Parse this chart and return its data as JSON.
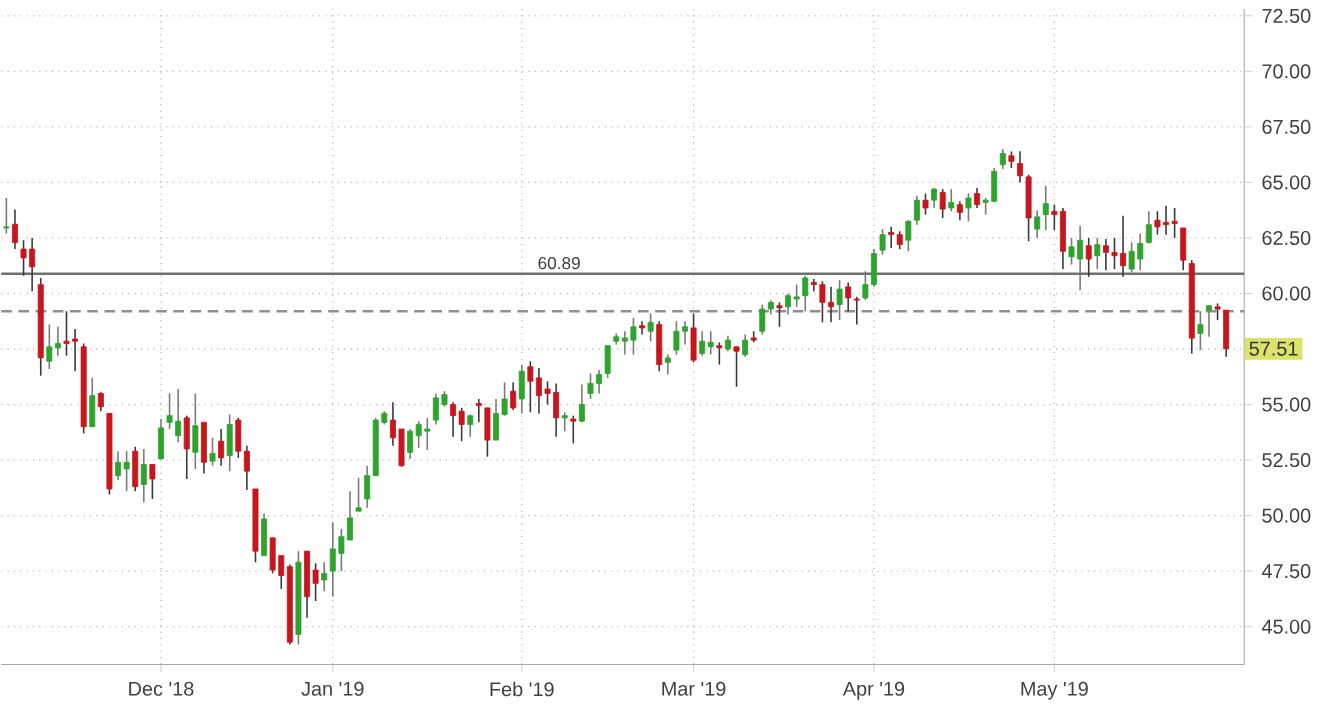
{
  "chart_data": {
    "type": "candlestick",
    "categories": [
      null,
      null,
      null,
      null,
      null,
      null,
      null,
      null,
      null,
      null,
      null,
      null,
      null,
      null,
      null,
      null,
      null,
      null,
      "Dec '18",
      null,
      null,
      null,
      null,
      null,
      null,
      null,
      null,
      null,
      null,
      null,
      null,
      null,
      null,
      null,
      null,
      null,
      null,
      null,
      "Jan '19",
      null,
      null,
      null,
      null,
      null,
      null,
      null,
      null,
      null,
      null,
      null,
      null,
      null,
      null,
      null,
      null,
      null,
      null,
      null,
      null,
      null,
      "Feb '19",
      null,
      null,
      null,
      null,
      null,
      null,
      null,
      null,
      null,
      null,
      null,
      null,
      null,
      null,
      null,
      null,
      null,
      null,
      null,
      "Mar '19",
      null,
      null,
      null,
      null,
      null,
      null,
      null,
      null,
      null,
      null,
      null,
      null,
      null,
      null,
      null,
      null,
      null,
      null,
      null,
      null,
      "Apr '19",
      null,
      null,
      null,
      null,
      null,
      null,
      null,
      null,
      null,
      null,
      null,
      null,
      null,
      null,
      null,
      null,
      null,
      null,
      null,
      null,
      "May '19",
      null,
      null,
      null,
      null,
      null,
      null,
      null,
      null,
      null,
      null,
      null,
      null,
      null,
      null,
      null,
      null,
      null,
      null,
      null,
      null
    ],
    "ohlc": [
      [
        62.95,
        64.3,
        62.7,
        63.0
      ],
      [
        63.12,
        63.78,
        62.0,
        62.29
      ],
      [
        62.0,
        62.4,
        60.8,
        61.6
      ],
      [
        62.0,
        62.5,
        60.1,
        61.2
      ],
      [
        60.4,
        60.7,
        56.3,
        57.1
      ],
      [
        56.95,
        58.6,
        56.6,
        57.6
      ],
      [
        57.55,
        58.5,
        57.2,
        57.75
      ],
      [
        57.85,
        59.2,
        57.2,
        57.75
      ],
      [
        57.95,
        58.4,
        56.5,
        57.85
      ],
      [
        57.6,
        57.75,
        53.7,
        54.0
      ],
      [
        54.0,
        56.2,
        54.0,
        55.4
      ],
      [
        55.5,
        55.55,
        54.7,
        54.9
      ],
      [
        54.6,
        54.6,
        50.95,
        51.2
      ],
      [
        51.8,
        52.9,
        51.6,
        52.4
      ],
      [
        52.1,
        52.9,
        51.1,
        52.4
      ],
      [
        52.9,
        53.1,
        51.1,
        51.3
      ],
      [
        51.4,
        53.0,
        50.6,
        52.3
      ],
      [
        52.3,
        52.3,
        50.75,
        51.65
      ],
      [
        52.55,
        54.35,
        52.55,
        53.95
      ],
      [
        54.2,
        55.5,
        53.9,
        54.5
      ],
      [
        53.6,
        55.7,
        53.3,
        54.25
      ],
      [
        54.4,
        54.5,
        51.65,
        53.0
      ],
      [
        52.85,
        55.5,
        52.1,
        54.05
      ],
      [
        54.2,
        54.2,
        51.9,
        52.4
      ],
      [
        52.45,
        53.5,
        52.25,
        52.8
      ],
      [
        53.35,
        53.9,
        52.25,
        52.6
      ],
      [
        52.7,
        54.55,
        52.0,
        54.1
      ],
      [
        54.3,
        54.4,
        52.6,
        52.9
      ],
      [
        52.9,
        53.15,
        51.15,
        52.0
      ],
      [
        51.2,
        51.2,
        47.9,
        48.4
      ],
      [
        48.2,
        50.1,
        48.2,
        49.85
      ],
      [
        49.0,
        49.0,
        47.4,
        47.55
      ],
      [
        48.2,
        48.2,
        46.7,
        47.3
      ],
      [
        47.7,
        47.8,
        44.2,
        44.3
      ],
      [
        44.65,
        48.4,
        44.2,
        47.9
      ],
      [
        48.4,
        48.4,
        45.4,
        46.35
      ],
      [
        47.55,
        47.85,
        46.15,
        46.95
      ],
      [
        47.1,
        47.9,
        46.6,
        47.4
      ],
      [
        47.5,
        49.7,
        46.35,
        48.5
      ],
      [
        48.3,
        49.4,
        47.5,
        49.05
      ],
      [
        48.9,
        51.1,
        48.9,
        49.9
      ],
      [
        50.2,
        51.7,
        50.2,
        50.35
      ],
      [
        50.75,
        52.25,
        50.35,
        51.8
      ],
      [
        51.8,
        54.4,
        51.8,
        54.3
      ],
      [
        54.2,
        54.7,
        54.1,
        54.6
      ],
      [
        54.3,
        55.1,
        53.15,
        53.5
      ],
      [
        53.9,
        53.9,
        52.2,
        52.25
      ],
      [
        52.85,
        53.9,
        52.55,
        53.8
      ],
      [
        53.6,
        54.25,
        53.05,
        54.1
      ],
      [
        53.8,
        54.4,
        52.95,
        53.9
      ],
      [
        54.3,
        55.5,
        54.1,
        55.3
      ],
      [
        55.0,
        55.6,
        54.9,
        55.45
      ],
      [
        55.0,
        55.1,
        53.55,
        54.5
      ],
      [
        54.7,
        54.85,
        53.35,
        54.1
      ],
      [
        54.1,
        54.55,
        53.55,
        54.5
      ],
      [
        55.05,
        55.25,
        54.2,
        54.95
      ],
      [
        54.85,
        54.85,
        52.65,
        53.4
      ],
      [
        53.4,
        55.25,
        53.4,
        54.6
      ],
      [
        54.55,
        56.0,
        54.5,
        55.25
      ],
      [
        55.6,
        56.0,
        54.75,
        54.85
      ],
      [
        55.25,
        56.8,
        54.6,
        56.5
      ],
      [
        56.7,
        56.95,
        54.65,
        56.05
      ],
      [
        56.2,
        56.65,
        54.6,
        55.4
      ],
      [
        55.7,
        56.05,
        55.0,
        55.5
      ],
      [
        55.55,
        55.95,
        53.55,
        54.4
      ],
      [
        54.4,
        54.65,
        53.8,
        54.5
      ],
      [
        54.35,
        54.5,
        53.25,
        54.25
      ],
      [
        54.25,
        55.9,
        54.2,
        55.0
      ],
      [
        55.5,
        56.4,
        55.25,
        55.95
      ],
      [
        55.95,
        56.55,
        55.5,
        56.35
      ],
      [
        56.4,
        57.65,
        56.2,
        57.65
      ],
      [
        57.85,
        58.2,
        57.7,
        58.05
      ],
      [
        57.85,
        58.3,
        57.25,
        58.0
      ],
      [
        57.9,
        58.9,
        57.25,
        58.5
      ],
      [
        58.55,
        58.75,
        58.15,
        58.45
      ],
      [
        58.3,
        59.1,
        57.85,
        58.7
      ],
      [
        58.6,
        58.75,
        56.5,
        56.8
      ],
      [
        56.9,
        57.25,
        56.35,
        57.1
      ],
      [
        57.45,
        58.75,
        57.25,
        58.3
      ],
      [
        58.3,
        58.75,
        57.7,
        58.5
      ],
      [
        58.45,
        59.1,
        56.9,
        57.0
      ],
      [
        57.3,
        58.3,
        57.2,
        57.85
      ],
      [
        57.6,
        58.3,
        57.25,
        57.8
      ],
      [
        57.65,
        57.8,
        56.8,
        57.55
      ],
      [
        57.5,
        58.1,
        57.4,
        57.9
      ],
      [
        57.6,
        57.6,
        55.8,
        57.4
      ],
      [
        57.25,
        58.15,
        57.15,
        57.9
      ],
      [
        58.0,
        58.3,
        57.8,
        57.9
      ],
      [
        58.3,
        59.5,
        58.15,
        59.3
      ],
      [
        59.3,
        59.7,
        59.05,
        59.6
      ],
      [
        59.45,
        59.6,
        58.5,
        59.35
      ],
      [
        59.4,
        60.0,
        59.05,
        59.9
      ],
      [
        59.75,
        60.4,
        59.4,
        59.85
      ],
      [
        59.9,
        60.8,
        59.2,
        60.7
      ],
      [
        60.5,
        60.65,
        60.1,
        60.4
      ],
      [
        60.4,
        60.55,
        58.7,
        59.6
      ],
      [
        59.6,
        60.3,
        58.7,
        59.4
      ],
      [
        59.5,
        60.6,
        58.8,
        60.2
      ],
      [
        60.3,
        60.5,
        59.2,
        59.8
      ],
      [
        59.75,
        59.85,
        58.6,
        59.7
      ],
      [
        59.8,
        61.0,
        59.7,
        60.4
      ],
      [
        60.4,
        62.0,
        60.3,
        61.8
      ],
      [
        61.95,
        62.9,
        61.75,
        62.65
      ],
      [
        62.75,
        63.0,
        62.05,
        62.65
      ],
      [
        62.65,
        62.8,
        62.0,
        62.2
      ],
      [
        62.4,
        63.3,
        61.9,
        63.25
      ],
      [
        63.3,
        64.4,
        63.1,
        64.2
      ],
      [
        64.2,
        64.5,
        63.55,
        63.85
      ],
      [
        64.2,
        64.75,
        63.85,
        64.7
      ],
      [
        64.55,
        64.7,
        63.4,
        63.8
      ],
      [
        63.85,
        64.7,
        63.7,
        64.1
      ],
      [
        64.0,
        64.15,
        63.3,
        63.65
      ],
      [
        63.85,
        64.5,
        63.25,
        64.3
      ],
      [
        64.5,
        64.75,
        63.85,
        64.0
      ],
      [
        64.1,
        64.3,
        63.55,
        64.2
      ],
      [
        64.15,
        65.65,
        64.1,
        65.5
      ],
      [
        65.8,
        66.5,
        65.6,
        66.3
      ],
      [
        66.2,
        66.4,
        65.65,
        65.95
      ],
      [
        65.85,
        66.4,
        65.0,
        65.3
      ],
      [
        65.25,
        65.35,
        62.35,
        63.4
      ],
      [
        62.9,
        63.75,
        62.5,
        63.45
      ],
      [
        63.55,
        64.85,
        62.85,
        64.05
      ],
      [
        63.7,
        64.0,
        62.85,
        63.55
      ],
      [
        63.7,
        63.85,
        61.1,
        61.9
      ],
      [
        61.65,
        62.5,
        61.3,
        62.1
      ],
      [
        61.55,
        63.05,
        60.15,
        62.4
      ],
      [
        62.15,
        62.5,
        60.75,
        61.55
      ],
      [
        61.7,
        62.5,
        61.1,
        62.2
      ],
      [
        62.15,
        62.45,
        61.05,
        61.85
      ],
      [
        61.85,
        62.5,
        61.1,
        61.7
      ],
      [
        61.8,
        63.5,
        60.75,
        61.25
      ],
      [
        61.1,
        62.3,
        60.95,
        61.9
      ],
      [
        61.55,
        62.7,
        61.05,
        62.25
      ],
      [
        62.3,
        63.7,
        62.25,
        63.1
      ],
      [
        63.3,
        63.7,
        62.65,
        63.0
      ],
      [
        63.2,
        63.95,
        62.65,
        63.1
      ],
      [
        63.25,
        63.85,
        62.5,
        63.15
      ],
      [
        62.95,
        62.95,
        61.05,
        61.5
      ],
      [
        61.35,
        61.5,
        57.3,
        57.99
      ],
      [
        58.2,
        59.2,
        57.45,
        58.6
      ],
      [
        59.25,
        59.45,
        58.05,
        59.45
      ],
      [
        59.4,
        59.55,
        58.8,
        59.3
      ],
      [
        59.25,
        59.25,
        57.15,
        57.51
      ]
    ],
    "ylim": [
      43.3,
      72.8
    ],
    "yticks": [
      {
        "value": 45,
        "label": "45.00"
      },
      {
        "value": 47.5,
        "label": "47.50"
      },
      {
        "value": 50,
        "label": "50.00"
      },
      {
        "value": 52.5,
        "label": "52.50"
      },
      {
        "value": 55,
        "label": "55.00"
      },
      {
        "value": 57.5,
        "label": null
      },
      {
        "value": 60,
        "label": "60.00"
      },
      {
        "value": 62.5,
        "label": "62.50"
      },
      {
        "value": 65,
        "label": "65.00"
      },
      {
        "value": 67.5,
        "label": "67.50"
      },
      {
        "value": 70,
        "label": "70.00"
      },
      {
        "value": 72.5,
        "label": "72.50"
      }
    ],
    "grid": true,
    "ref_lines": [
      {
        "axis": "y",
        "value": 60.89,
        "label": "60.89",
        "color": "#707070",
        "line_style": "solid"
      },
      {
        "axis": "y",
        "value": 59.2,
        "color": "#909090",
        "line_style": "dashed"
      }
    ],
    "annotations": [
      {
        "text": "57.51",
        "y": 57.51
      }
    ]
  }
}
